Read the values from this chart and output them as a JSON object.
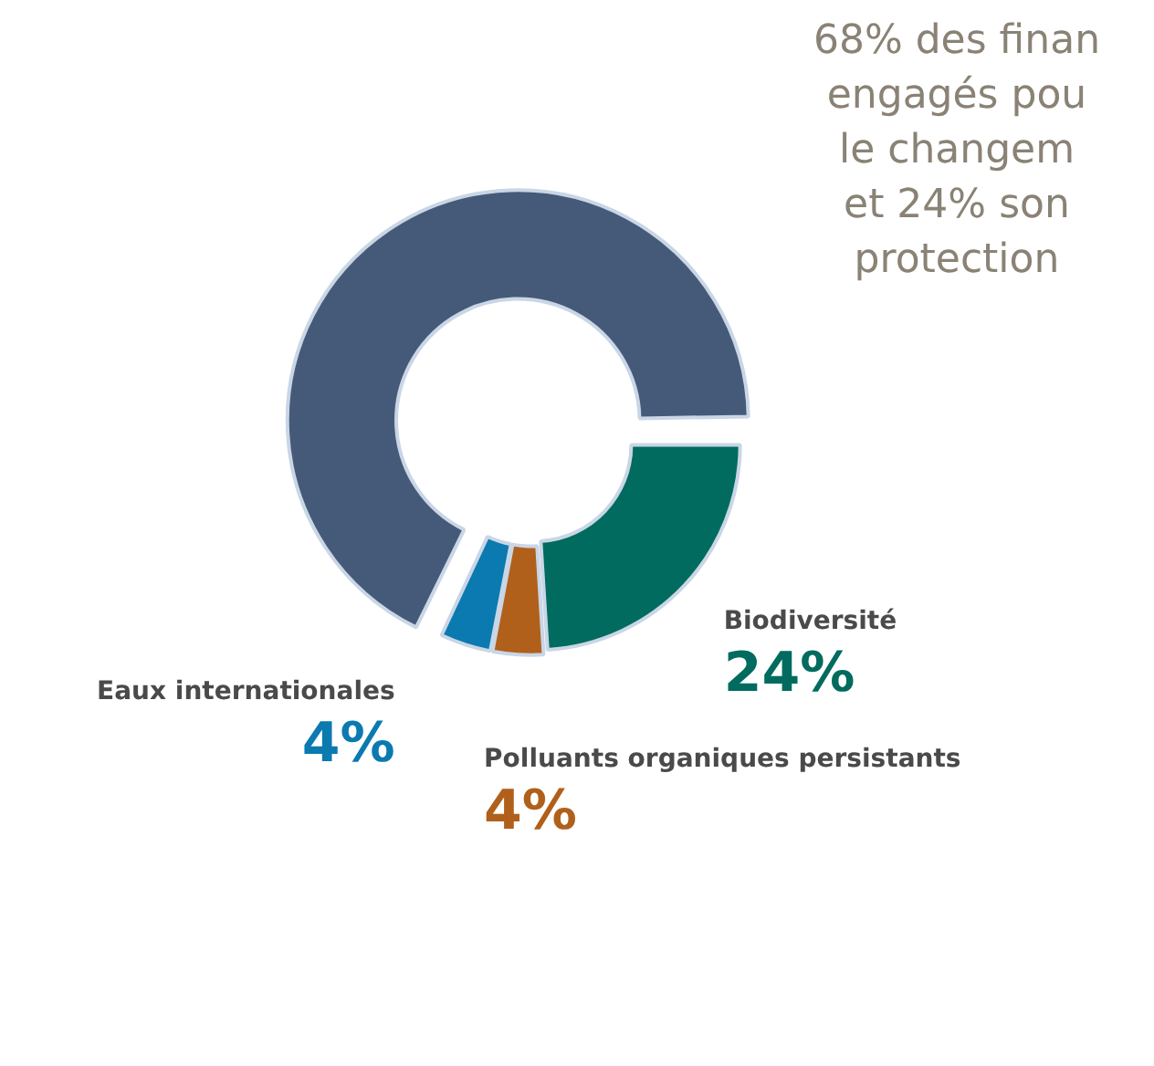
{
  "chart_data": {
    "type": "donut",
    "title": "68% des finan\nengagés pou\nle changem\net 24% son\nprotection",
    "categories": [
      "Biodiversité",
      "Polluants organiques persistants",
      "Eaux internationales",
      null
    ],
    "values": [
      24,
      4,
      4,
      68
    ],
    "colors": [
      "#006b5e",
      "#b0601a",
      "#0a7ab0",
      "#455a78"
    ],
    "value_labels": [
      "24%",
      "4%",
      "4%",
      null
    ],
    "legend": false
  }
}
